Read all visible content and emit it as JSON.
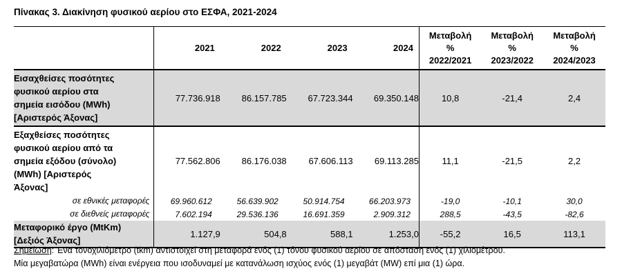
{
  "title": "Πίνακας 3. Διακίνηση φυσικού αερίου στο ΕΣΦΑ, 2021-2024",
  "header": {
    "years": [
      "2021",
      "2022",
      "2023",
      "2024"
    ],
    "variations": [
      {
        "l1": "Μεταβολή",
        "l2": "%",
        "l3": "2022/2021"
      },
      {
        "l1": "Μεταβολή",
        "l2": "%",
        "l3": "2023/2022"
      },
      {
        "l1": "Μεταβολή",
        "l2": "%",
        "l3": "2024/2023"
      }
    ]
  },
  "rows": {
    "entry": {
      "label": [
        "Εισαχθείσες ποσότητες",
        "φυσικού αερίου στα",
        "σημεία εισόδου (MWh)",
        "[Αριστερός Άξονας]"
      ],
      "values": [
        "77.736.918",
        "86.157.785",
        "67.723.344",
        "69.350.148"
      ],
      "changes": [
        "10,8",
        "-21,4",
        "2,4"
      ]
    },
    "exit": {
      "label": [
        "Εξαχθείσες ποσότητες",
        "φυσικού αερίου από τα",
        "σημεία εξόδου (σύνολο)",
        "(MWh)  [Αριστερός",
        "Άξονας]"
      ],
      "values": [
        "77.562.806",
        "86.176.038",
        "67.606.113",
        "69.113.285"
      ],
      "changes": [
        "11,1",
        "-21,5",
        "2,2"
      ]
    },
    "domestic": {
      "label": "σε εθνικές μεταφορές",
      "values": [
        "69.960.612",
        "56.639.902",
        "50.914.754",
        "66.203.973"
      ],
      "changes": [
        "-19,0",
        "-10,1",
        "30,0"
      ]
    },
    "international": {
      "label": "σε διεθνείς μεταφορές",
      "values": [
        "7.602.194",
        "29.536.136",
        "16.691.359",
        "2.909.312"
      ],
      "changes": [
        "288,5",
        "-43,5",
        "-82,6"
      ]
    },
    "transport": {
      "label": [
        "Μεταφορικό έργο (MtKm)",
        "[Δεξιός Άξονας]"
      ],
      "values": [
        "1.127,9",
        "504,8",
        "588,1",
        "1.253,0"
      ],
      "changes": [
        "-55,2",
        "16,5",
        "113,1"
      ]
    }
  },
  "notes": {
    "note_word": "Σημείωση",
    "line1": ": Ένα τονοχιλιόμετρο (tkm) αντιστοιχεί στη μεταφορά ενός (1) τόνου φυσικού αερίου σε απόσταση ενός (1) χιλιομέτρου.",
    "line2": "Μία μεγαβατώρα (MWh) είναι ενέργεια που ισοδυναμεί με κατανάλωση ισχύος ενός (1) μεγαβάτ (MW) επί μια (1) ώρα."
  }
}
